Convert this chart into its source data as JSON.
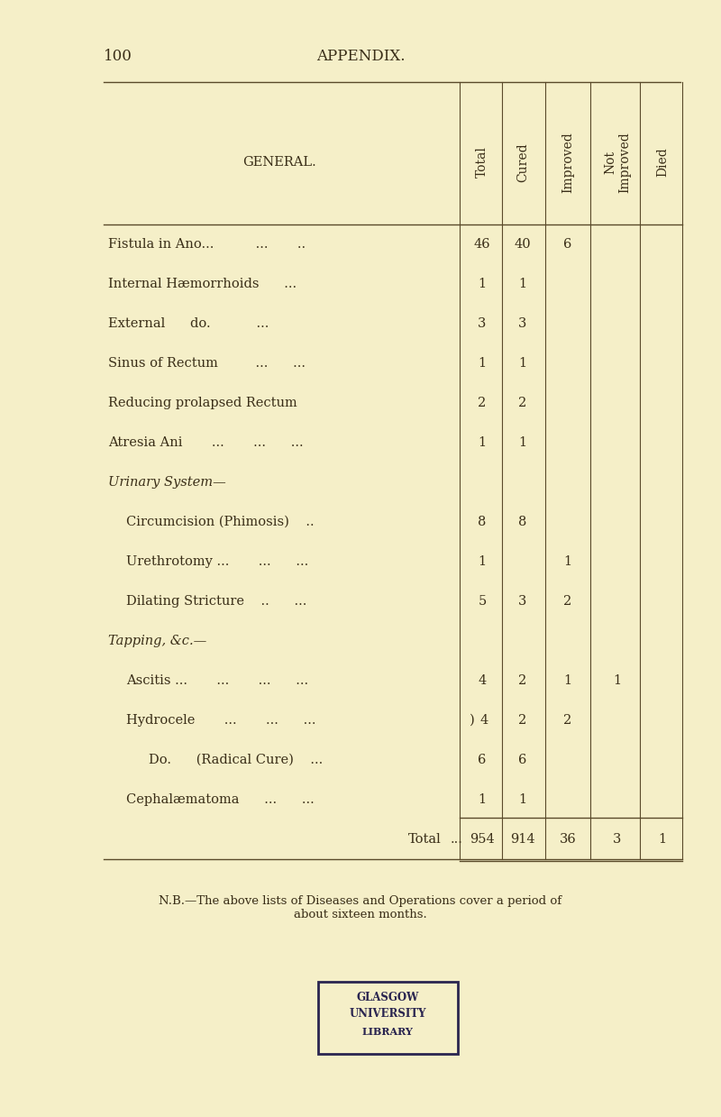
{
  "page_number": "100",
  "page_title": "APPENDIX.",
  "background_color": "#f5efc8",
  "col_headers": [
    "Total",
    "Cured",
    "Improved",
    "Not\nImproved",
    "Died"
  ],
  "section_label": "GENERAL.",
  "rows": [
    {
      "label": "Fistula in Ano...          ...       ..",
      "indent": 0,
      "values": [
        "46",
        "40",
        "6",
        "",
        ""
      ],
      "italic_label": false
    },
    {
      "label": "Internal Hæmorrhoids      ...",
      "indent": 0,
      "values": [
        "1",
        "1",
        "",
        "",
        ""
      ],
      "italic_label": false
    },
    {
      "label": "External      do.           ...",
      "indent": 0,
      "values": [
        "3",
        "3",
        "",
        "",
        ""
      ],
      "italic_label": false
    },
    {
      "label": "Sinus of Rectum         ...      ...",
      "indent": 0,
      "values": [
        "1",
        "1",
        "",
        "",
        ""
      ],
      "italic_label": false
    },
    {
      "label": "Reducing prolapsed Rectum",
      "indent": 0,
      "values": [
        "2",
        "2",
        "",
        "",
        ""
      ],
      "italic_label": false
    },
    {
      "label": "Atresia Ani       ...       ...      ...",
      "indent": 0,
      "values": [
        "1",
        "1",
        "",
        "",
        ""
      ],
      "italic_label": false
    },
    {
      "label": "Urinary System—",
      "indent": 0,
      "values": [
        "",
        "",
        "",
        "",
        ""
      ],
      "italic_label": true
    },
    {
      "label": "Circumcision (Phimosis)    ..",
      "indent": 1,
      "values": [
        "8",
        "8",
        "",
        "",
        ""
      ],
      "italic_label": false
    },
    {
      "label": "Urethrotomy ...       ...      ...",
      "indent": 1,
      "values": [
        "1",
        "",
        "1",
        "",
        ""
      ],
      "italic_label": false
    },
    {
      "label": "Dilating Stricture    ..      ...",
      "indent": 1,
      "values": [
        "5",
        "3",
        "2",
        "",
        ""
      ],
      "italic_label": false
    },
    {
      "label": "Tapping, &c.—",
      "indent": 0,
      "values": [
        "",
        "",
        "",
        "",
        ""
      ],
      "italic_label": true
    },
    {
      "label": "Ascitis ...       ...       ...      ...",
      "indent": 1,
      "values": [
        "4",
        "2",
        "1",
        "1",
        ""
      ],
      "italic_label": false
    },
    {
      "label": "Hydrocele       ...       ...      ...",
      "indent": 1,
      "values": [
        ") 4",
        "2",
        "2",
        "",
        ""
      ],
      "italic_label": false
    },
    {
      "label": "Do.      (Radical Cure)    ...",
      "indent": 2,
      "values": [
        "6",
        "6",
        "",
        "",
        ""
      ],
      "italic_label": false
    },
    {
      "label": "Cephalæmatoma      ...      ...",
      "indent": 1,
      "values": [
        "1",
        "1",
        "",
        "",
        ""
      ],
      "italic_label": false
    },
    {
      "label": "Total",
      "indent": 3,
      "values": [
        "954",
        "914",
        "36",
        "3",
        "1"
      ],
      "italic_label": false,
      "is_total": true
    }
  ],
  "nb_text": "N.B.—The above lists of Diseases and Operations cover a period of\nabout sixteen months.",
  "text_color": "#3a2e18",
  "line_color": "#5a4a2a",
  "title_fontsize": 12,
  "body_fontsize": 10.5,
  "header_fontsize": 10
}
